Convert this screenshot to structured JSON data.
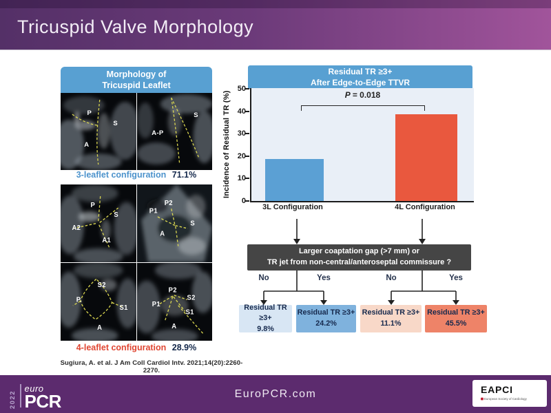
{
  "slide": {
    "title": "Tricuspid Valve Morphology",
    "citation": "Sugiura, A. et al. J Am Coll Cardiol Intv. 2021;14(20):2260-2270."
  },
  "colors": {
    "header_gradient_left": "#543067",
    "header_gradient_right": "#A1549B",
    "footer_purple": "#5C2B6E",
    "panel_header_blue": "#58A0D2",
    "chart_background": "#E9EFF7",
    "bar_blue": "#5BA0D4",
    "bar_red": "#E9583E",
    "question_box_gray": "#454545",
    "label_blue": "#4D93CC",
    "label_red": "#E04632",
    "value_navy": "#14284B"
  },
  "left_panel": {
    "header_line1": "Morphology of",
    "header_line2": "Tricuspid Leaflet",
    "three_leaflet": {
      "label": "3-leaflet configuration",
      "value": "71.1%",
      "images": [
        {
          "labels": [
            "P",
            "S",
            "A"
          ]
        },
        {
          "labels": [
            "A-P",
            "S"
          ]
        }
      ]
    },
    "four_leaflet": {
      "label": "4-leaflet configuration",
      "value": "28.9%",
      "images": [
        {
          "labels": [
            "P",
            "S",
            "A2",
            "A1"
          ]
        },
        {
          "labels": [
            "P1",
            "P2",
            "S",
            "A"
          ]
        },
        {
          "labels": [
            "S2",
            "P.",
            "S1",
            "A"
          ]
        },
        {
          "labels": [
            "P2",
            "P1",
            "S2",
            "S1",
            "A"
          ]
        }
      ]
    }
  },
  "chart": {
    "title_line1": "Residual TR ≥3+",
    "title_line2": "After Edge-to-Edge TTVR",
    "p_italic": "P",
    "p_rest": "= 0.018"
  },
  "chart_data": {
    "type": "bar",
    "title": "Residual TR ≥3+ After Edge-to-Edge TTVR",
    "categories": [
      "3L Configuration",
      "4L Configuration"
    ],
    "values": [
      18.5,
      38.5
    ],
    "bar_colors": [
      "#5BA0D4",
      "#E9583E"
    ],
    "xlabel": "",
    "ylabel": "Incidence of Residual TR (%)",
    "ylim": [
      0,
      50
    ],
    "yticks": [
      0,
      10,
      20,
      30,
      40,
      50
    ],
    "annotation": "P = 0.018",
    "grid": false,
    "legend": false
  },
  "flowchart": {
    "question_line1": "Larger coaptation gap (>7 mm) or",
    "question_line2": "TR jet from non-central/anteroseptal commissure ?",
    "branches": [
      "No",
      "Yes",
      "No",
      "Yes"
    ],
    "outcomes": [
      {
        "label": "Residual TR ≥3+",
        "value": "9.8%",
        "color": "#D8E6F4"
      },
      {
        "label": "Residual TR ≥3+",
        "value": "24.2%",
        "color": "#7FB2DD"
      },
      {
        "label": "Residual TR ≥3+",
        "value": "11.1%",
        "color": "#F8D8C8"
      },
      {
        "label": "Residual TR ≥3+",
        "value": "45.5%",
        "color": "#EE8368"
      }
    ]
  },
  "footer": {
    "year": "2022",
    "euro": "euro",
    "pcr": "PCR",
    "website": "EuroPCR.com",
    "eapci_name": "EAPCI",
    "eapci_subtitle": "European Society of Cardiology"
  }
}
